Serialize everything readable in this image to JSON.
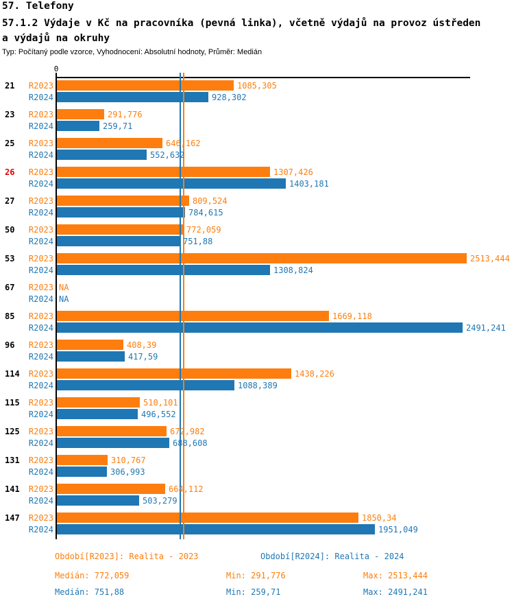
{
  "header": {
    "title": "57. Telefony",
    "subtitle": "57.1.2 Výdaje v Kč na pracovníka (pevná linka), včetně výdajů na provoz ústředen a výdajů na okruhy",
    "meta": "Typ: Počítaný podle vzorce, Vyhodnocení: Absolutní hodnoty, Průměr: Medián"
  },
  "colors": {
    "r2023": "#fd7e0e",
    "r2024": "#1f77b4",
    "highlight": "#e60000",
    "text": "#000000"
  },
  "chart_data": {
    "type": "bar",
    "orientation": "horizontal",
    "title": "57.1.2 Výdaje v Kč na pracovníka (pevná linka), včetně výdajů na provoz ústředen a výdajů na okruhy",
    "categories": [
      "21",
      "23",
      "25",
      "26",
      "27",
      "50",
      "53",
      "67",
      "85",
      "96",
      "114",
      "115",
      "125",
      "131",
      "141",
      "147"
    ],
    "highlighted_category": "26",
    "axis": {
      "zero_label": "0",
      "xlim": [
        0,
        2540
      ],
      "grid": false
    },
    "series": [
      {
        "name": "R2023",
        "color": "#fd7e0e",
        "median": 772.059,
        "values": [
          1085.305,
          291.776,
          646.162,
          1307.426,
          809.524,
          772.059,
          2513.444,
          null,
          1669.118,
          408.39,
          1438.226,
          510.101,
          672.982,
          310.767,
          664.112,
          1850.34
        ],
        "labels": [
          "1085,305",
          "291,776",
          "646,162",
          "1307,426",
          "809,524",
          "772,059",
          "2513,444",
          "NA",
          "1669,118",
          "408,39",
          "1438,226",
          "510,101",
          "672,982",
          "310,767",
          "664,112",
          "1850,34"
        ]
      },
      {
        "name": "R2024",
        "color": "#1f77b4",
        "median": 751.88,
        "values": [
          928.302,
          259.71,
          552.632,
          1403.181,
          784.615,
          751.88,
          1308.824,
          null,
          2491.241,
          417.59,
          1088.389,
          496.552,
          688.608,
          306.993,
          503.279,
          1951.049
        ],
        "labels": [
          "928,302",
          "259,71",
          "552,632",
          "1403,181",
          "784,615",
          "751,88",
          "1308,824",
          "NA",
          "2491,241",
          "417,59",
          "1088,389",
          "496,552",
          "688,608",
          "306,993",
          "503,279",
          "1951,049"
        ]
      }
    ]
  },
  "legend": {
    "r2023": "Období[R2023]: Realita - 2023",
    "r2024": "Období[R2024]: Realita - 2024"
  },
  "stats": {
    "r2023": {
      "median": "Medián: 772,059",
      "min": "Min: 291,776",
      "max": "Max: 2513,444"
    },
    "r2024": {
      "median": "Medián: 751,88",
      "min": "Min: 259,71",
      "max": "Max: 2491,241"
    }
  }
}
